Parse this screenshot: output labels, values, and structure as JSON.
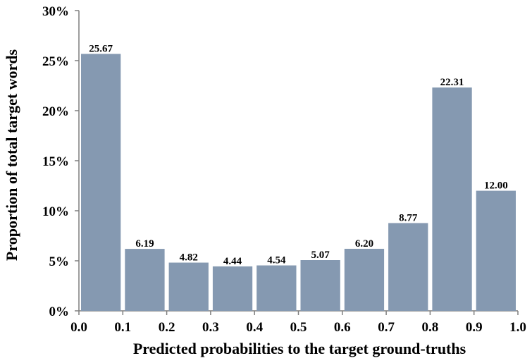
{
  "chart_data": {
    "type": "bar",
    "title": "",
    "xlabel": "Predicted probabilities to the target ground-truths",
    "ylabel": "Proportion of  total target words",
    "x_ticks": [
      "0.0",
      "0.1",
      "0.2",
      "0.3",
      "0.4",
      "0.5",
      "0.6",
      "0.7",
      "0.8",
      "0.9",
      "1.0"
    ],
    "y_ticks": [
      "0%",
      "5%",
      "10%",
      "15%",
      "20%",
      "25%",
      "30%"
    ],
    "ylim": [
      0,
      30
    ],
    "bins": [
      [
        0.0,
        0.1
      ],
      [
        0.1,
        0.2
      ],
      [
        0.2,
        0.3
      ],
      [
        0.3,
        0.4
      ],
      [
        0.4,
        0.5
      ],
      [
        0.5,
        0.6
      ],
      [
        0.6,
        0.7
      ],
      [
        0.7,
        0.8
      ],
      [
        0.8,
        0.9
      ],
      [
        0.9,
        1.0
      ]
    ],
    "values": [
      25.67,
      6.19,
      4.82,
      4.44,
      4.54,
      5.07,
      6.2,
      8.77,
      22.31,
      12.0
    ],
    "value_labels": [
      "25.67",
      "6.19",
      "4.82",
      "4.44",
      "4.54",
      "5.07",
      "6.20",
      "8.77",
      "22.31",
      "12.00"
    ],
    "bar_color": "#8599b1",
    "grid": false,
    "legend": "none"
  }
}
